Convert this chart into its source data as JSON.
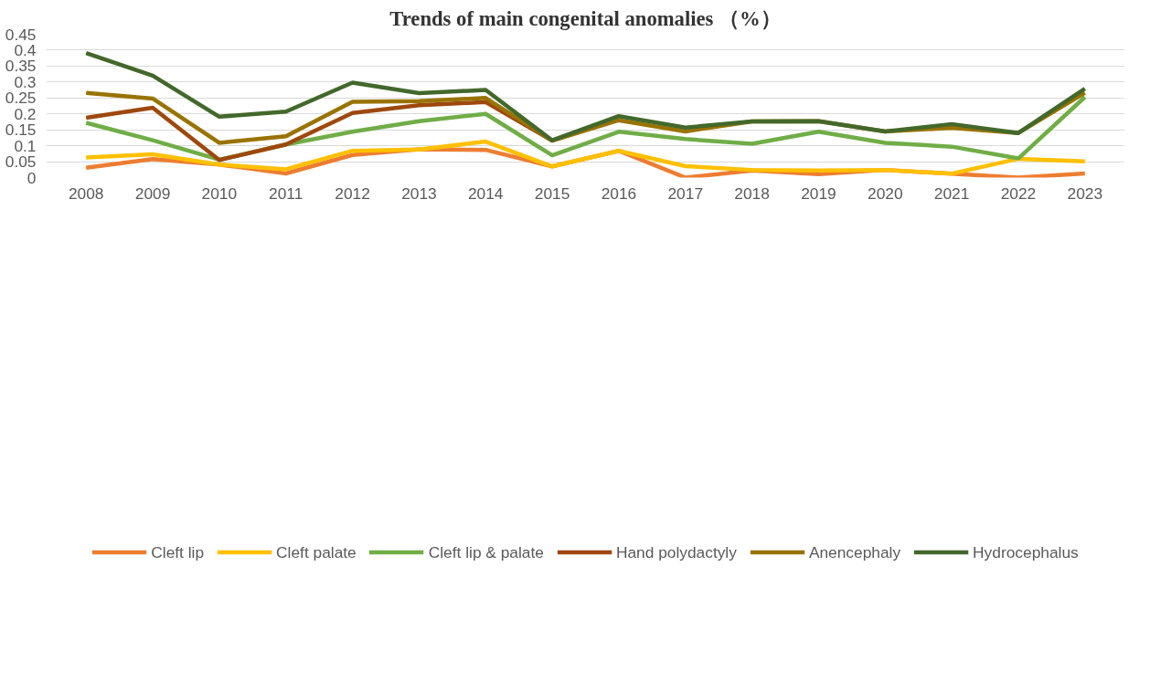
{
  "chart_data": {
    "type": "line",
    "title": "Trends of main congenital anomalies （%）",
    "categories": [
      "2008",
      "2009",
      "2010",
      "2011",
      "2012",
      "2013",
      "2014",
      "2015",
      "2016",
      "2017",
      "2018",
      "2019",
      "2020",
      "2021",
      "2022",
      "2023"
    ],
    "ylim": [
      0,
      0.45
    ],
    "yticks": [
      0,
      {
        "value": 0.05,
        "label": "0.05"
      },
      {
        "value": 0.1,
        "label": "0.1"
      },
      {
        "value": 0.15,
        "label": "0.15"
      },
      {
        "value": 0.2,
        "label": "0.2"
      },
      {
        "value": 0.25,
        "label": "0.25"
      },
      {
        "value": 0.3,
        "label": "0.3"
      },
      {
        "value": 0.35,
        "label": "0.35"
      },
      {
        "value": 0.4,
        "label": "0.4"
      },
      {
        "value": 0.45,
        "label": "0.45"
      }
    ],
    "grid": "y",
    "legend": "bottom",
    "marker": "none",
    "line_style": "solid",
    "series": [
      {
        "name": "Cleft lip",
        "color": "#ed7d31",
        "values": [
          0.031,
          0.058,
          0.041,
          0.013,
          0.071,
          0.089,
          0.087,
          0.035,
          0.084,
          0,
          0.022,
          0.011,
          0.024,
          0.012,
          0,
          0.013
        ]
      },
      {
        "name": "Cleft palate",
        "color": "#ffc000",
        "values": [
          0.063,
          0.073,
          0.041,
          0.026,
          0.084,
          0.088,
          0.113,
          0.035,
          0.084,
          0.036,
          0.024,
          0.022,
          0.024,
          0.012,
          0.059,
          0.051
        ]
      },
      {
        "name": "Cleft lip & palate",
        "color": "#70ad47",
        "values": [
          0.172,
          0.117,
          0.056,
          0.104,
          0.144,
          0.177,
          0.2,
          0.07,
          0.144,
          0.121,
          0.106,
          0.144,
          0.109,
          0.097,
          0.06,
          0.253
        ]
      },
      {
        "name": "Hand polydactyly",
        "color": "#9e480e",
        "values": [
          0.188,
          0.219,
          0.055,
          0.104,
          0.203,
          0.227,
          0.237,
          0.116,
          null,
          null,
          null,
          null,
          null,
          null,
          null,
          null
        ]
      },
      {
        "name": "Anencephaly",
        "color": "#997300",
        "values": [
          0.266,
          0.248,
          0.109,
          0.13,
          0.238,
          0.24,
          0.25,
          0.116,
          0.18,
          0.145,
          0.176,
          0.177,
          0.145,
          0.156,
          0.14,
          0.266
        ]
      },
      {
        "name": "Hydrocephalus",
        "color": "#43682b",
        "values": [
          0.391,
          0.32,
          0.191,
          0.207,
          0.298,
          0.265,
          0.275,
          0.117,
          0.193,
          0.157,
          0.176,
          0.177,
          0.145,
          0.168,
          0.14,
          0.279
        ]
      }
    ]
  }
}
